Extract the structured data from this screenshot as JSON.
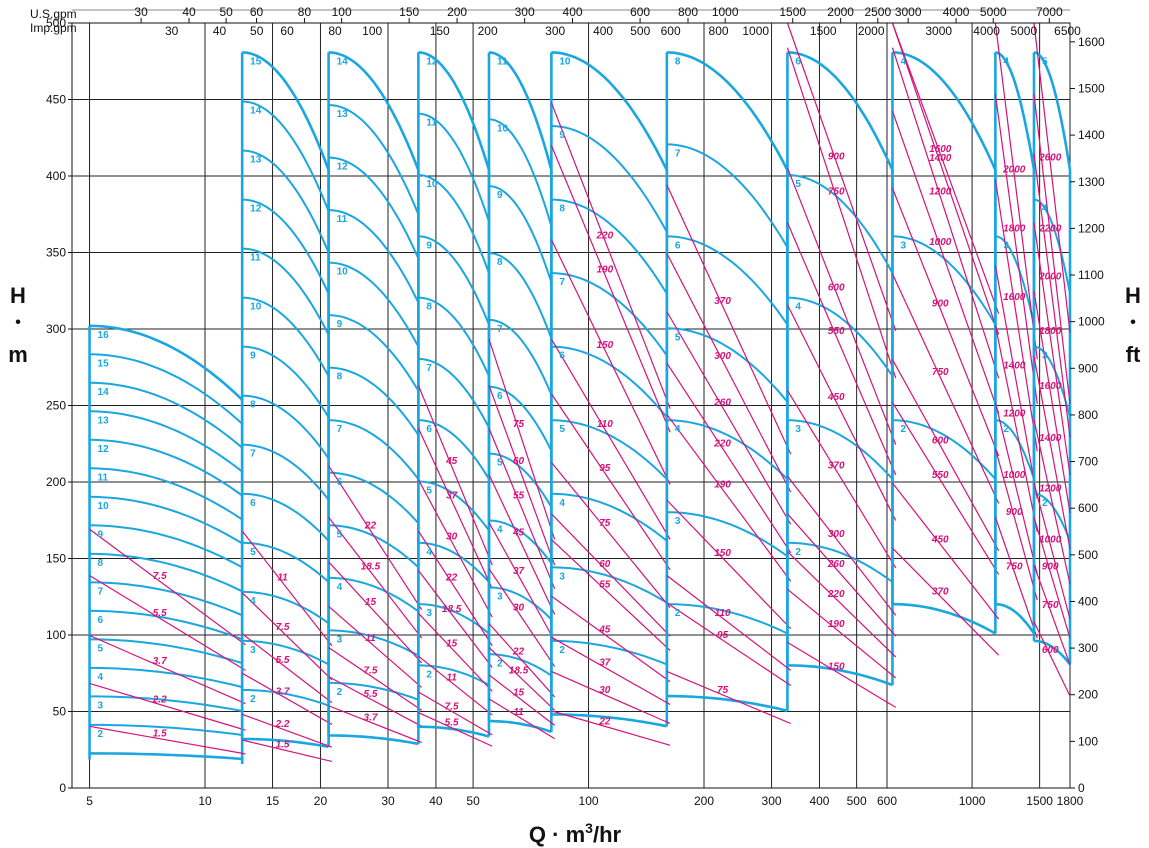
{
  "chart_data": {
    "type": "line",
    "x_scale": "log",
    "x_label_prefix": "Q · m",
    "x_label_sup": "3",
    "x_label_suffix": "/hr",
    "x_ticks": [
      5,
      10,
      15,
      20,
      30,
      40,
      50,
      100,
      200,
      300,
      400,
      500,
      600,
      1000,
      1500,
      1800
    ],
    "xlim": [
      4.5,
      1800
    ],
    "y_left": {
      "label_top": "H",
      "label_dot": "•",
      "label_bottom": "m",
      "ticks": [
        0,
        50,
        100,
        150,
        200,
        250,
        300,
        350,
        400,
        450,
        500
      ],
      "ylim": [
        0,
        500
      ]
    },
    "y_right": {
      "label_top": "H",
      "label_dot": "•",
      "label_bottom": "ft",
      "ticks": [
        0,
        100,
        200,
        300,
        400,
        500,
        600,
        700,
        800,
        900,
        1000,
        1100,
        1200,
        1300,
        1400,
        1500,
        1600
      ]
    },
    "us_gpm": {
      "label": "U.S.gpm",
      "ticks": [
        "30",
        "40",
        "50",
        "60",
        "80",
        "100",
        "150",
        "200",
        "300",
        "400",
        "600",
        "800",
        "1000",
        "1500",
        "2000",
        "2500",
        "3000",
        "4000",
        "5000",
        "7000"
      ]
    },
    "imp_gpm": {
      "label": "Imp.gpm",
      "ticks": [
        "30",
        "40",
        "50",
        "60",
        "80",
        "100",
        "150",
        "200",
        "300",
        "400",
        "500",
        "600",
        "800",
        "1000",
        "1500",
        "2000",
        "3000",
        "4000",
        "5000",
        "6500"
      ]
    },
    "grid": true,
    "series_color": "#1aa6e0",
    "power_color": "#d6127a",
    "pump_ranges": [
      {
        "qmin": 5,
        "qmax": 12.5,
        "max_stage": 16,
        "stage_labels": [
          "2",
          "3",
          "4",
          "5",
          "6",
          "7",
          "8",
          "9",
          "10",
          "11",
          "12",
          "13",
          "14",
          "15",
          "16"
        ],
        "power_lines": [
          {
            "label": "1.5",
            "h": 36
          },
          {
            "label": "2.2",
            "h": 61
          },
          {
            "label": "3.7",
            "h": 89
          },
          {
            "label": "5.5",
            "h": 124
          },
          {
            "label": "7.5",
            "h": 151
          }
        ]
      },
      {
        "qmin": 12.5,
        "qmax": 21,
        "max_stage": 15,
        "stage_labels": [
          "2",
          "3",
          "4",
          "5",
          "6",
          "7",
          "8",
          "9",
          "10",
          "11",
          "12",
          "13",
          "14",
          "15"
        ],
        "power_lines": [
          {
            "label": "1.5",
            "h": 28
          },
          {
            "label": "2.2",
            "h": 43
          },
          {
            "label": "3.7",
            "h": 67
          },
          {
            "label": "5.5",
            "h": 90
          },
          {
            "label": "7.5",
            "h": 114
          },
          {
            "label": "11",
            "h": 150
          }
        ]
      },
      {
        "qmin": 21,
        "qmax": 36,
        "max_stage": 14,
        "stage_labels": [
          "2",
          "3",
          "4",
          "5",
          "6",
          "7",
          "8",
          "9",
          "10",
          "11",
          "12",
          "13",
          "14"
        ],
        "power_lines": [
          {
            "label": "3.7",
            "h": 48
          },
          {
            "label": "5.5",
            "h": 65
          },
          {
            "label": "7.5",
            "h": 82
          },
          {
            "label": "11",
            "h": 106
          },
          {
            "label": "15",
            "h": 132
          },
          {
            "label": "18.5",
            "h": 158
          },
          {
            "label": "22",
            "h": 188
          }
        ]
      },
      {
        "qmin": 36,
        "qmax": 55,
        "max_stage": 12,
        "stage_labels": [
          "2",
          "3",
          "4",
          "5",
          "6",
          "7",
          "8",
          "9",
          "10",
          "11",
          "12"
        ],
        "power_lines": [
          {
            "label": "5.5",
            "h": 44
          },
          {
            "label": "7.5",
            "h": 56
          },
          {
            "label": "11",
            "h": 77
          },
          {
            "label": "15",
            "h": 102
          },
          {
            "label": "18.5",
            "h": 127
          },
          {
            "label": "22",
            "h": 150
          },
          {
            "label": "30",
            "h": 180
          },
          {
            "label": "37",
            "h": 210
          },
          {
            "label": "45",
            "h": 235
          }
        ]
      },
      {
        "qmin": 55,
        "qmax": 80,
        "max_stage": 11,
        "stage_labels": [
          "2",
          "3",
          "4",
          "5",
          "6",
          "7",
          "8",
          "9",
          "10",
          "11"
        ],
        "power_lines": [
          {
            "label": "11",
            "h": 52
          },
          {
            "label": "15",
            "h": 66
          },
          {
            "label": "18.5",
            "h": 82
          },
          {
            "label": "22",
            "h": 96
          },
          {
            "label": "30",
            "h": 128
          },
          {
            "label": "37",
            "h": 155
          },
          {
            "label": "45",
            "h": 183
          },
          {
            "label": "55",
            "h": 210
          },
          {
            "label": "60",
            "h": 235
          },
          {
            "label": "75",
            "h": 262
          }
        ]
      },
      {
        "qmin": 80,
        "qmax": 160,
        "max_stage": 10,
        "stage_labels": [
          "2",
          "3",
          "4",
          "5",
          "6",
          "7",
          "8",
          "9",
          "10"
        ],
        "power_lines": [
          {
            "label": "22",
            "h": 45
          },
          {
            "label": "30",
            "h": 68
          },
          {
            "label": "37",
            "h": 88
          },
          {
            "label": "45",
            "h": 112
          },
          {
            "label": "55",
            "h": 145
          },
          {
            "label": "60",
            "h": 160
          },
          {
            "label": "75",
            "h": 190
          },
          {
            "label": "95",
            "h": 230
          },
          {
            "label": "110",
            "h": 262
          },
          {
            "label": "150",
            "h": 320
          },
          {
            "label": "190",
            "h": 375
          },
          {
            "label": "220",
            "h": 400
          }
        ]
      },
      {
        "qmin": 160,
        "qmax": 330,
        "max_stage": 8,
        "stage_labels": [
          "2",
          "3",
          "4",
          "5",
          "6",
          "7",
          "8"
        ],
        "power_lines": [
          {
            "label": "75",
            "h": 68
          },
          {
            "label": "95",
            "h": 108
          },
          {
            "label": "110",
            "h": 124
          },
          {
            "label": "150",
            "h": 168
          },
          {
            "label": "190",
            "h": 218
          },
          {
            "label": "220",
            "h": 248
          },
          {
            "label": "260",
            "h": 278
          },
          {
            "label": "300",
            "h": 312
          },
          {
            "label": "370",
            "h": 352
          }
        ]
      },
      {
        "qmin": 330,
        "qmax": 620,
        "max_stage": 6,
        "stage_labels": [
          "2",
          "3",
          "4",
          "5",
          "6"
        ],
        "power_lines": [
          {
            "label": "150",
            "h": 85
          },
          {
            "label": "190",
            "h": 116
          },
          {
            "label": "220",
            "h": 138
          },
          {
            "label": "260",
            "h": 160
          },
          {
            "label": "300",
            "h": 182
          },
          {
            "label": "370",
            "h": 232
          },
          {
            "label": "450",
            "h": 282
          },
          {
            "label": "550",
            "h": 330
          },
          {
            "label": "600",
            "h": 362
          },
          {
            "label": "750",
            "h": 432
          },
          {
            "label": "900",
            "h": 482
          }
        ]
      },
      {
        "qmin": 620,
        "qmax": 1150,
        "max_stage": 4,
        "stage_labels": [
          "2",
          "3",
          "4"
        ],
        "power_lines": [
          {
            "label": "370",
            "h": 140
          },
          {
            "label": "450",
            "h": 178
          },
          {
            "label": "550",
            "h": 225
          },
          {
            "label": "600",
            "h": 250
          },
          {
            "label": "750",
            "h": 300
          },
          {
            "label": "900",
            "h": 350
          },
          {
            "label": "1000",
            "h": 395
          },
          {
            "label": "1200",
            "h": 432
          },
          {
            "label": "1400",
            "h": 478
          },
          {
            "label": "1600",
            "h": 500
          }
        ]
      },
      {
        "qmin": 1150,
        "qmax": 1450,
        "max_stage": 4,
        "stage_labels": [
          "2",
          "3",
          "4"
        ],
        "power_lines": [
          {
            "label": "750",
            "h": 158
          },
          {
            "label": "900",
            "h": 198
          },
          {
            "label": "1000",
            "h": 225
          },
          {
            "label": "1200",
            "h": 270
          },
          {
            "label": "1400",
            "h": 305
          },
          {
            "label": "1600",
            "h": 355
          },
          {
            "label": "1800",
            "h": 405
          },
          {
            "label": "2000",
            "h": 452
          }
        ]
      },
      {
        "qmin": 1450,
        "qmax": 1800,
        "max_stage": 5,
        "stage_labels": [
          "2",
          "3",
          "4",
          "5"
        ],
        "power_lines": [
          {
            "label": "600",
            "h": 97
          },
          {
            "label": "750",
            "h": 130
          },
          {
            "label": "900",
            "h": 158
          },
          {
            "label": "1000",
            "h": 178
          },
          {
            "label": "1200",
            "h": 215
          },
          {
            "label": "1400",
            "h": 252
          },
          {
            "label": "1600",
            "h": 290
          },
          {
            "label": "1800",
            "h": 330
          },
          {
            "label": "2000",
            "h": 370
          },
          {
            "label": "2200",
            "h": 405
          },
          {
            "label": "2600",
            "h": 480
          }
        ]
      }
    ]
  }
}
